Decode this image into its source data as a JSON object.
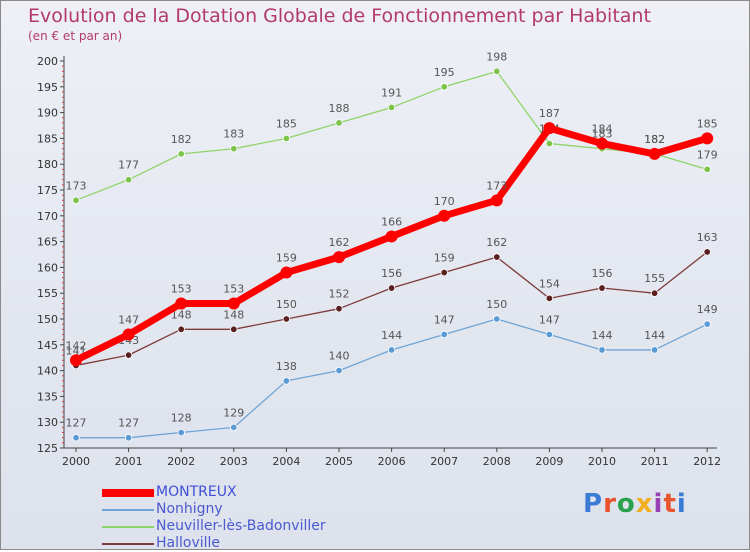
{
  "header": {
    "title": "Evolution de la Dotation Globale de Fonctionnement par Habitant",
    "subtitle": "(en € et par an)"
  },
  "brand": {
    "logo_text": "Proxiti",
    "letter_colors": [
      "#3a7bd5",
      "#e8542b",
      "#2aa14b",
      "#f2b01e",
      "#9b3fb5",
      "#e8542b",
      "#3a7bd5"
    ]
  },
  "chart_data": {
    "type": "line",
    "x": [
      2000,
      2001,
      2002,
      2003,
      2004,
      2005,
      2006,
      2007,
      2008,
      2009,
      2010,
      2011,
      2012
    ],
    "ylim": [
      125,
      200
    ],
    "yticks": [
      125,
      130,
      135,
      140,
      145,
      150,
      155,
      160,
      165,
      170,
      175,
      180,
      185,
      190,
      195,
      200
    ],
    "grid": false,
    "legend_position": "bottom-left",
    "series": [
      {
        "name": "Neuviller-lès-Badonviller",
        "color": "#8fd46a",
        "point_color": "#7cc44a",
        "values": [
          173,
          177,
          182,
          183,
          185,
          188,
          191,
          195,
          198,
          184,
          183,
          182,
          179
        ],
        "labels": [
          "173",
          "177",
          "182",
          "183",
          "185",
          "188",
          "191",
          "195",
          "198",
          "184",
          "183",
          "182",
          "179"
        ]
      },
      {
        "name": "Nonhigny",
        "color": "#6fa5d6",
        "point_color": "#5b9bd5",
        "values": [
          127,
          127,
          128,
          129,
          138,
          140,
          144,
          147,
          150,
          147,
          144,
          144,
          149
        ],
        "labels": [
          "127",
          "127",
          "128",
          "129",
          "138",
          "140",
          "144",
          "147",
          "150",
          "147",
          "144",
          "144",
          "149"
        ]
      },
      {
        "name": "Halloville",
        "color": "#7d3b3b",
        "point_color": "#5a2020",
        "values": [
          141,
          143,
          148,
          148,
          150,
          152,
          156,
          159,
          162,
          154,
          156,
          155,
          163
        ],
        "labels": [
          "141",
          "143",
          "148",
          "148",
          "150",
          "152",
          "156",
          "159",
          "162",
          "154",
          "156",
          "155",
          "163"
        ]
      },
      {
        "name": "MONTREUX",
        "color": "#ff0000",
        "point_color": "#ff0000",
        "highlight": true,
        "values": [
          142,
          147,
          153,
          153,
          159,
          162,
          166,
          170,
          173,
          187,
          184,
          182,
          185
        ],
        "labels": [
          "142",
          "147",
          "153",
          "153",
          "159",
          "162",
          "166",
          "170",
          "173",
          "187",
          "184",
          "182",
          "185"
        ]
      }
    ],
    "legend_order": [
      "MONTREUX",
      "Nonhigny",
      "Neuviller-lès-Badonviller",
      "Halloville"
    ]
  }
}
